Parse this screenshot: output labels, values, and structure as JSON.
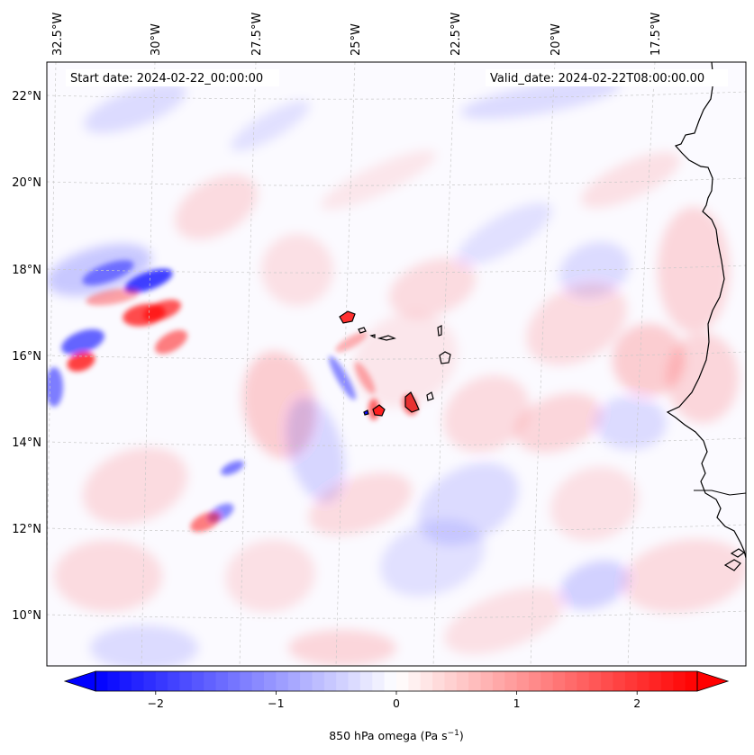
{
  "header": {
    "start_date": "Start date: 2024-02-22_00:00:00",
    "valid_date": "Valid_date: 2024-02-22T08:00:00.00"
  },
  "map": {
    "lon_labels": [
      "32.5°W",
      "30°W",
      "27.5°W",
      "25°W",
      "22.5°W",
      "20°W",
      "17.5°W"
    ],
    "lat_labels": [
      "22°N",
      "20°N",
      "18°N",
      "16°N",
      "14°N",
      "12°N",
      "10°N"
    ],
    "colors": {
      "negative": "#0000ff",
      "neutral": "#ffffff",
      "positive": "#ff0000",
      "coastline": "#000000",
      "gridline": "#c8c8c8"
    }
  },
  "colorbar": {
    "ticks": [
      "−2",
      "−1",
      "0",
      "1",
      "2"
    ],
    "tick_values": [
      -2,
      -1,
      0,
      1,
      2
    ],
    "range": [
      -2.5,
      2.5
    ],
    "label_main": "850 hPa omega (Pa s",
    "label_sup": "−1",
    "label_end": ")"
  }
}
